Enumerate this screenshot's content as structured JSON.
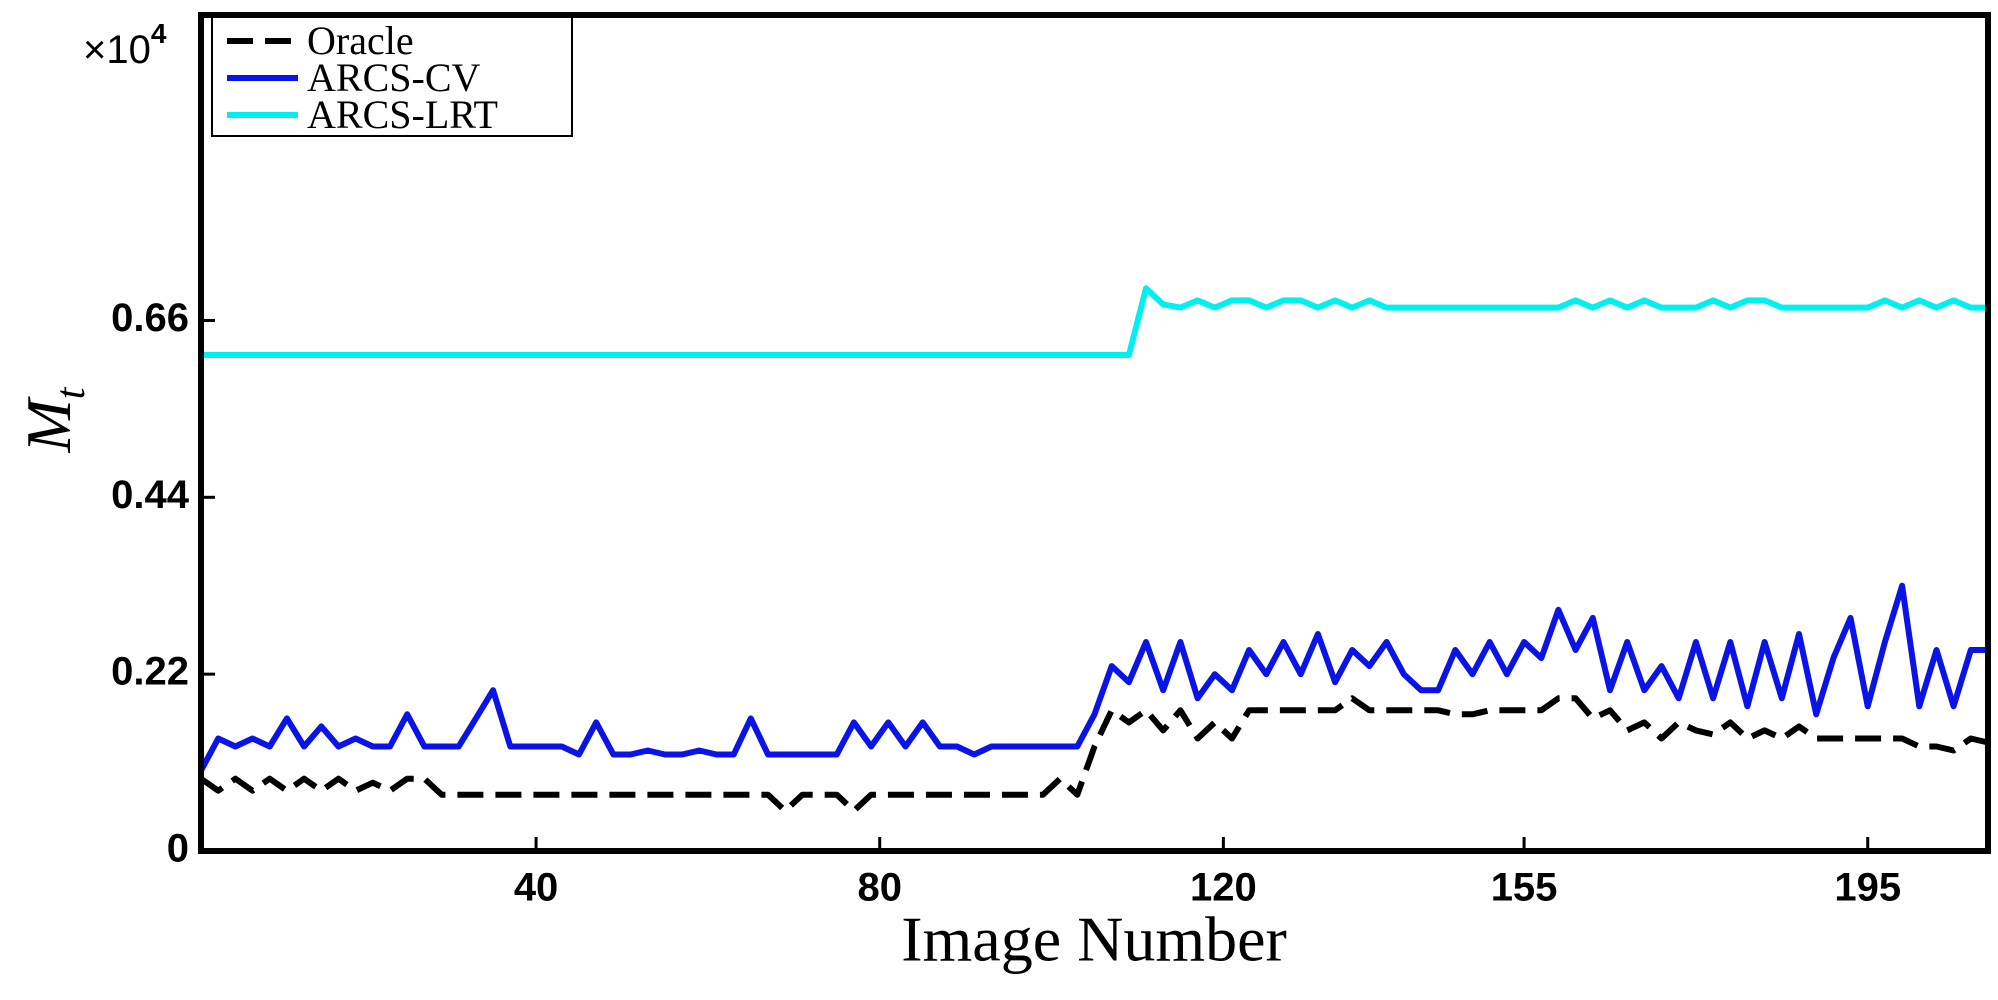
{
  "chart_data": {
    "type": "line",
    "xlabel": "Image Number",
    "ylabel": {
      "base": "M",
      "subscript": "t"
    },
    "y_multiplier": {
      "base": "×10",
      "exponent": "4"
    },
    "x": [
      1,
      3,
      5,
      7,
      9,
      11,
      13,
      15,
      17,
      19,
      21,
      23,
      25,
      27,
      29,
      31,
      33,
      35,
      37,
      39,
      41,
      43,
      45,
      47,
      49,
      51,
      53,
      55,
      57,
      59,
      61,
      63,
      65,
      67,
      69,
      71,
      73,
      75,
      77,
      79,
      81,
      83,
      85,
      87,
      89,
      91,
      93,
      95,
      97,
      99,
      101,
      103,
      105,
      107,
      109,
      111,
      113,
      115,
      117,
      119,
      121,
      123,
      125,
      127,
      129,
      131,
      133,
      135,
      137,
      139,
      141,
      143,
      145,
      147,
      149,
      151,
      153,
      155,
      157,
      159,
      161,
      163,
      165,
      167,
      169,
      171,
      173,
      175,
      177,
      179,
      181,
      183,
      185,
      187,
      189,
      191,
      193,
      195,
      197,
      199,
      201,
      203,
      205,
      207,
      209
    ],
    "series": [
      {
        "name": "Oracle",
        "color": "#000000",
        "dashed": true,
        "values": [
          0.09,
          0.075,
          0.09,
          0.075,
          0.09,
          0.075,
          0.09,
          0.075,
          0.09,
          0.075,
          0.085,
          0.075,
          0.09,
          0.09,
          0.07,
          0.07,
          0.07,
          0.07,
          0.07,
          0.07,
          0.07,
          0.07,
          0.07,
          0.07,
          0.07,
          0.07,
          0.07,
          0.07,
          0.07,
          0.07,
          0.07,
          0.07,
          0.07,
          0.07,
          0.05,
          0.07,
          0.07,
          0.07,
          0.05,
          0.07,
          0.07,
          0.07,
          0.07,
          0.07,
          0.07,
          0.07,
          0.07,
          0.07,
          0.07,
          0.07,
          0.09,
          0.07,
          0.13,
          0.175,
          0.16,
          0.175,
          0.15,
          0.175,
          0.14,
          0.16,
          0.14,
          0.175,
          0.175,
          0.175,
          0.175,
          0.175,
          0.175,
          0.19,
          0.175,
          0.175,
          0.175,
          0.175,
          0.175,
          0.17,
          0.17,
          0.175,
          0.175,
          0.175,
          0.175,
          0.19,
          0.19,
          0.165,
          0.175,
          0.15,
          0.16,
          0.14,
          0.16,
          0.15,
          0.145,
          0.16,
          0.14,
          0.15,
          0.14,
          0.155,
          0.14,
          0.14,
          0.14,
          0.14,
          0.14,
          0.14,
          0.13,
          0.13,
          0.125,
          0.14,
          0.135
        ]
      },
      {
        "name": "ARCS-CV",
        "color": "#0a14e6",
        "dashed": false,
        "values": [
          0.1,
          0.14,
          0.13,
          0.14,
          0.13,
          0.165,
          0.13,
          0.155,
          0.13,
          0.14,
          0.13,
          0.13,
          0.17,
          0.13,
          0.13,
          0.13,
          0.165,
          0.2,
          0.13,
          0.13,
          0.13,
          0.13,
          0.12,
          0.16,
          0.12,
          0.12,
          0.125,
          0.12,
          0.12,
          0.125,
          0.12,
          0.12,
          0.165,
          0.12,
          0.12,
          0.12,
          0.12,
          0.12,
          0.16,
          0.13,
          0.16,
          0.13,
          0.16,
          0.13,
          0.13,
          0.12,
          0.13,
          0.13,
          0.13,
          0.13,
          0.13,
          0.13,
          0.17,
          0.23,
          0.21,
          0.26,
          0.2,
          0.26,
          0.19,
          0.22,
          0.2,
          0.25,
          0.22,
          0.26,
          0.22,
          0.27,
          0.21,
          0.25,
          0.23,
          0.26,
          0.22,
          0.2,
          0.2,
          0.25,
          0.22,
          0.26,
          0.22,
          0.26,
          0.24,
          0.3,
          0.25,
          0.29,
          0.2,
          0.26,
          0.2,
          0.23,
          0.19,
          0.26,
          0.19,
          0.26,
          0.18,
          0.26,
          0.19,
          0.27,
          0.17,
          0.24,
          0.29,
          0.18,
          0.26,
          0.33,
          0.18,
          0.25,
          0.18,
          0.25,
          0.25
        ]
      },
      {
        "name": "ARCS-LRT",
        "color": "#00f0f0",
        "dashed": false,
        "values": [
          0.617,
          0.617,
          0.617,
          0.617,
          0.617,
          0.617,
          0.617,
          0.617,
          0.617,
          0.617,
          0.617,
          0.617,
          0.617,
          0.617,
          0.617,
          0.617,
          0.617,
          0.617,
          0.617,
          0.617,
          0.617,
          0.617,
          0.617,
          0.617,
          0.617,
          0.617,
          0.617,
          0.617,
          0.617,
          0.617,
          0.617,
          0.617,
          0.617,
          0.617,
          0.617,
          0.617,
          0.617,
          0.617,
          0.617,
          0.617,
          0.617,
          0.617,
          0.617,
          0.617,
          0.617,
          0.617,
          0.617,
          0.617,
          0.617,
          0.617,
          0.617,
          0.617,
          0.617,
          0.617,
          0.617,
          0.7,
          0.68,
          0.676,
          0.685,
          0.676,
          0.685,
          0.685,
          0.676,
          0.685,
          0.685,
          0.676,
          0.685,
          0.676,
          0.685,
          0.676,
          0.676,
          0.676,
          0.676,
          0.676,
          0.676,
          0.676,
          0.676,
          0.676,
          0.676,
          0.676,
          0.685,
          0.676,
          0.685,
          0.676,
          0.685,
          0.676,
          0.676,
          0.676,
          0.685,
          0.676,
          0.685,
          0.685,
          0.676,
          0.676,
          0.676,
          0.676,
          0.676,
          0.676,
          0.685,
          0.676,
          0.685,
          0.676,
          0.685,
          0.676,
          0.676
        ]
      }
    ],
    "xlim": [
      1,
      209
    ],
    "xticks": [
      40,
      80,
      120,
      155,
      195
    ],
    "ylim": [
      0,
      1.04
    ],
    "yticks": [
      0,
      0.22,
      0.44,
      0.66
    ],
    "grid": false,
    "legend": "upper left"
  }
}
